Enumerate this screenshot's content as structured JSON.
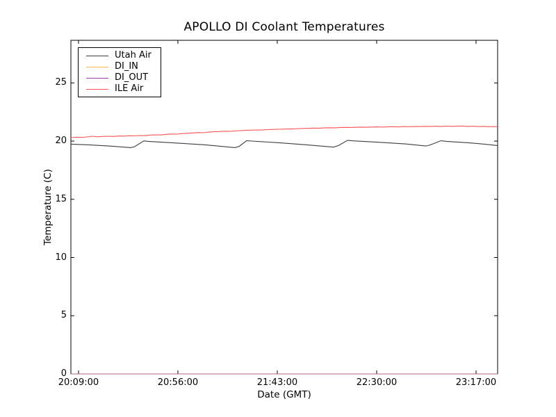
{
  "chart_data": {
    "type": "line",
    "title": "APOLLO DI Coolant Temperatures",
    "xlabel": "Date (GMT)",
    "ylabel": "Temperature (C)",
    "x_unit": "minutes since 20:09:00 GMT",
    "xlim_minutes": [
      -3.6,
      198.2
    ],
    "ylim": [
      0,
      28.66
    ],
    "grid": false,
    "legend_position": "upper left",
    "x_ticks": [
      {
        "minute": 0,
        "label": "20:09:00"
      },
      {
        "minute": 47,
        "label": "20:56:00"
      },
      {
        "minute": 94,
        "label": "21:43:00"
      },
      {
        "minute": 141,
        "label": "22:30:00"
      },
      {
        "minute": 188,
        "label": "23:17:00"
      }
    ],
    "y_ticks": [
      {
        "value": 0,
        "label": "0"
      },
      {
        "value": 5,
        "label": "5"
      },
      {
        "value": 10,
        "label": "10"
      },
      {
        "value": 15,
        "label": "15"
      },
      {
        "value": 20,
        "label": "20"
      },
      {
        "value": 25,
        "label": "25"
      }
    ],
    "draw_order": [
      1,
      2,
      0,
      3
    ],
    "series": [
      {
        "name": "Utah Air",
        "color": "#3d3d3d",
        "opacity": 1,
        "points": [
          [
            -3.6,
            19.74
          ],
          [
            5,
            19.68
          ],
          [
            15,
            19.57
          ],
          [
            24.7,
            19.44
          ],
          [
            26.5,
            19.52
          ],
          [
            30.9,
            20.02
          ],
          [
            33,
            19.98
          ],
          [
            45,
            19.85
          ],
          [
            60,
            19.68
          ],
          [
            74,
            19.44
          ],
          [
            76,
            19.55
          ],
          [
            79.5,
            20.04
          ],
          [
            82,
            20.0
          ],
          [
            95,
            19.86
          ],
          [
            108,
            19.68
          ],
          [
            120.6,
            19.48
          ],
          [
            123,
            19.62
          ],
          [
            127.2,
            20.07
          ],
          [
            130,
            20.02
          ],
          [
            142,
            19.9
          ],
          [
            155,
            19.75
          ],
          [
            164.3,
            19.58
          ],
          [
            166.5,
            19.68
          ],
          [
            171.3,
            20.03
          ],
          [
            174,
            19.98
          ],
          [
            185,
            19.85
          ],
          [
            192,
            19.74
          ],
          [
            198.2,
            19.62
          ]
        ]
      },
      {
        "name": "DI_IN",
        "color": "#ffb84d",
        "opacity": 0.9,
        "points": [
          [
            -3.6,
            0
          ],
          [
            198.2,
            0
          ]
        ]
      },
      {
        "name": "DI_OUT",
        "color": "#9b3fa5",
        "opacity": 0.65,
        "points": [
          [
            -3.6,
            0
          ],
          [
            198.2,
            0
          ]
        ]
      },
      {
        "name": "ILE Air",
        "color": "#ff5252",
        "opacity": 1,
        "points": [
          [
            -3.6,
            20.3
          ],
          [
            -1,
            20.33
          ],
          [
            1.5,
            20.31
          ],
          [
            4,
            20.36
          ],
          [
            6.5,
            20.42
          ],
          [
            9,
            20.37
          ],
          [
            11.5,
            20.4
          ],
          [
            14,
            20.42
          ],
          [
            16.5,
            20.4
          ],
          [
            19,
            20.44
          ],
          [
            21.5,
            20.43
          ],
          [
            24,
            20.46
          ],
          [
            26.5,
            20.45
          ],
          [
            29,
            20.48
          ],
          [
            31.5,
            20.47
          ],
          [
            34,
            20.52
          ],
          [
            36.5,
            20.54
          ],
          [
            39,
            20.53
          ],
          [
            41.5,
            20.58
          ],
          [
            44,
            20.61
          ],
          [
            46.5,
            20.6
          ],
          [
            49,
            20.65
          ],
          [
            51.5,
            20.67
          ],
          [
            54,
            20.7
          ],
          [
            56.5,
            20.73
          ],
          [
            59,
            20.72
          ],
          [
            61.5,
            20.77
          ],
          [
            64,
            20.8
          ],
          [
            66.5,
            20.82
          ],
          [
            69,
            20.85
          ],
          [
            71.5,
            20.84
          ],
          [
            74,
            20.88
          ],
          [
            76.5,
            20.9
          ],
          [
            79,
            20.92
          ],
          [
            81.5,
            20.94
          ],
          [
            84,
            20.96
          ],
          [
            86.5,
            20.95
          ],
          [
            89,
            20.99
          ],
          [
            91.5,
            21.0
          ],
          [
            94,
            21.02
          ],
          [
            96.5,
            21.03
          ],
          [
            99,
            21.05
          ],
          [
            101.5,
            21.04
          ],
          [
            104,
            21.08
          ],
          [
            106.5,
            21.09
          ],
          [
            109,
            21.1
          ],
          [
            111.5,
            21.12
          ],
          [
            114,
            21.11
          ],
          [
            116.5,
            21.14
          ],
          [
            119,
            21.15
          ],
          [
            121.5,
            21.14
          ],
          [
            124,
            21.17
          ],
          [
            126.5,
            21.18
          ],
          [
            129,
            21.17
          ],
          [
            131.5,
            21.19
          ],
          [
            134,
            21.2
          ],
          [
            136.5,
            21.19
          ],
          [
            139,
            21.21
          ],
          [
            141.5,
            21.22
          ],
          [
            144,
            21.21
          ],
          [
            146.5,
            21.23
          ],
          [
            149,
            21.24
          ],
          [
            151.5,
            21.22
          ],
          [
            154,
            21.25
          ],
          [
            156.5,
            21.24
          ],
          [
            159,
            21.26
          ],
          [
            161.5,
            21.25
          ],
          [
            164,
            21.27
          ],
          [
            166.5,
            21.26
          ],
          [
            169,
            21.28
          ],
          [
            171.5,
            21.26
          ],
          [
            174,
            21.29
          ],
          [
            176.5,
            21.27
          ],
          [
            179,
            21.28
          ],
          [
            181.5,
            21.3
          ],
          [
            184,
            21.26
          ],
          [
            186.5,
            21.28
          ],
          [
            189,
            21.25
          ],
          [
            191.5,
            21.27
          ],
          [
            194,
            21.24
          ],
          [
            196.5,
            21.25
          ],
          [
            198.2,
            21.23
          ]
        ]
      }
    ]
  }
}
